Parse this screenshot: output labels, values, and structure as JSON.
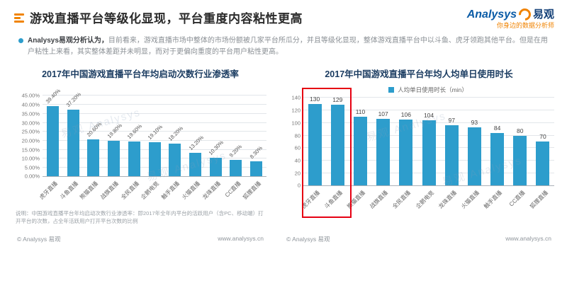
{
  "header": {
    "title": "游戏直播平台等级化显现，平台重度内容粘性更高",
    "logo": {
      "brand": "Analysys",
      "brand_cn": "易观",
      "tagline": "你身边的数据分析师"
    }
  },
  "summary": {
    "lead": "Analysys易观分析认为，",
    "body": "目前看来，游戏直播市场中整体的市场份额被几家平台所瓜分，并且等级化显现，整体游戏直播平台中以斗鱼、虎牙领跑其他平台。但是在用户粘性上来看，其实整体差距并未明显，而对于更偏向重度的平台用户粘性更高。"
  },
  "watermark": "易观 Analysys",
  "footer": {
    "copyright": "© Analysys 易观",
    "site": "www.analysys.cn"
  },
  "colors": {
    "bar": "#2D9DCC",
    "accent_orange": "#F08300",
    "highlight_red": "#E60012",
    "title_navy": "#1B3C61"
  },
  "chart_data": [
    {
      "type": "bar",
      "title": "2017年中国游戏直播平台年均启动次数行业渗透率",
      "categories": [
        "虎牙直播",
        "斗鱼直播",
        "熊猫直播",
        "战旗直播",
        "全民直播",
        "企鹅电竞",
        "触手直播",
        "火猫直播",
        "龙珠直播",
        "CC直播",
        "狐狸直播"
      ],
      "values": [
        39.4,
        37.2,
        20.6,
        19.8,
        19.6,
        19.1,
        18.2,
        13.2,
        10.3,
        9.2,
        8.3
      ],
      "value_labels": [
        "39.40%",
        "37.20%",
        "20.60%",
        "19.80%",
        "19.60%",
        "19.10%",
        "18.20%",
        "13.20%",
        "10.30%",
        "9.20%",
        "8.30%"
      ],
      "value_rotated": true,
      "ylim": [
        0,
        45
      ],
      "yticks": [
        "0.00%",
        "5.00%",
        "10.00%",
        "15.00%",
        "20.00%",
        "25.00%",
        "30.00%",
        "35.00%",
        "40.00%",
        "45.00%"
      ],
      "xlabel": "",
      "ylabel": "",
      "grid": true,
      "footnote": "说明：中国游戏直播平台年均启动次数行业渗透率：即2017年全年内平台的活跃用户（含PC、移动端）打开平台的次数，占全年活跃用户打开平台次数的比例"
    },
    {
      "type": "bar",
      "title": "2017年中国游戏直播平台年均人均单日使用时长",
      "legend": "人均单日使用时长（min）",
      "legend_position": "top",
      "categories": [
        "虎牙直播",
        "斗鱼直播",
        "熊猫直播",
        "战旗直播",
        "全民直播",
        "企鹅电竞",
        "龙珠直播",
        "火猫直播",
        "触手直播",
        "CC直播",
        "狐狸直播"
      ],
      "values": [
        130,
        129,
        110,
        107,
        106,
        104,
        97,
        93,
        84,
        80,
        70
      ],
      "value_labels": [
        "130",
        "129",
        "110",
        "107",
        "106",
        "104",
        "97",
        "93",
        "84",
        "80",
        "70"
      ],
      "value_rotated": false,
      "ylim": [
        0,
        140
      ],
      "yticks": [
        "0",
        "20",
        "40",
        "60",
        "80",
        "100",
        "120",
        "140"
      ],
      "xlabel": "",
      "ylabel": "",
      "grid": true,
      "highlight": {
        "bars": [
          0,
          1
        ],
        "color": "#E60012"
      }
    }
  ]
}
